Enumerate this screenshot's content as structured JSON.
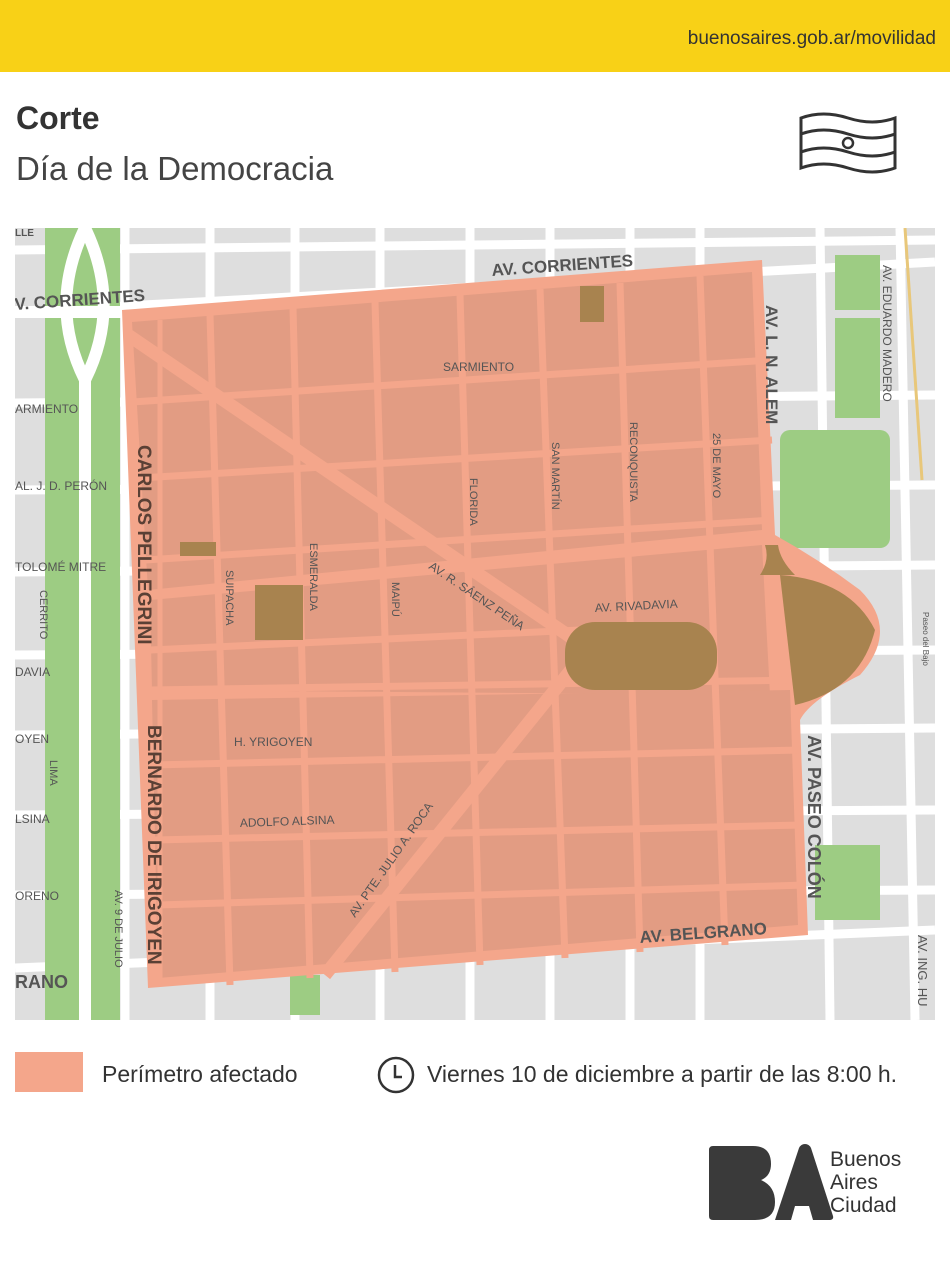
{
  "header": {
    "url": "buenosaires.gob.ar/movilidad",
    "brand_color": "#F8D117"
  },
  "title": "Corte",
  "subtitle": "Día de la Democracia",
  "map": {
    "colors": {
      "affected_area": "#F4A68B",
      "blocks": "#E29C83",
      "plaza": "#A8834F",
      "park": "#9DCC83",
      "base": "#DEDEDE"
    },
    "streets": {
      "corrientes_top": "AV. CORRIENTES",
      "corrientes_left": "V. CORRIENTES",
      "sarmiento": "SARMIENTO",
      "sarmiento_left": "ARMIENTO",
      "peron_left": "AL. J. D. PERÓN",
      "mitre_left": "TOLOMÉ MITRE",
      "rivadavia_left": "DAVIA",
      "yrigoyen_left": "OYEN",
      "alsina_left": "LSINA",
      "moreno_left": "ORENO",
      "belgrano_left": "RANO",
      "calle_top": "LLE",
      "cerrito": "CERRITO",
      "lima": "LIMA",
      "nueve_julio": "AV. 9 DE JULIO",
      "pellegrini": "CARLOS PELLEGRINI",
      "irigoyen": "BERNARDO DE IRIGOYEN",
      "suipacha": "SUIPACHA",
      "esmeralda": "ESMERALDA",
      "maipu": "MAIPÚ",
      "florida": "FLORIDA",
      "san_martin": "SAN MARTÍN",
      "reconquista": "RECONQUISTA",
      "veinticinco_mayo": "25 DE MAYO",
      "saenz_pena": "AV. R. SÁENZ PEÑA",
      "rivadavia": "AV. RIVADAVIA",
      "h_yrigoyen": "H. YRIGOYEN",
      "alsina": "ADOLFO ALSINA",
      "roca": "AV. PTE. JULIO A. ROCA",
      "belgrano": "AV. BELGRANO",
      "alem": "AV. L. N. ALEM",
      "madero": "AV. EDUARDO MADERO",
      "paseo_bajo": "Paseo del Bajo",
      "paseo_colon": "AV. PASEO COLÓN",
      "huergo": "AV. ING. HU"
    }
  },
  "legend": {
    "affected_label": "Perímetro afectado",
    "clock_icon": "clock-icon",
    "schedule": "Viernes 10 de diciembre a partir de las 8:00 h."
  },
  "logo": {
    "mark": "BA",
    "line1": "Buenos",
    "line2": "Aires",
    "line3": "Ciudad"
  }
}
